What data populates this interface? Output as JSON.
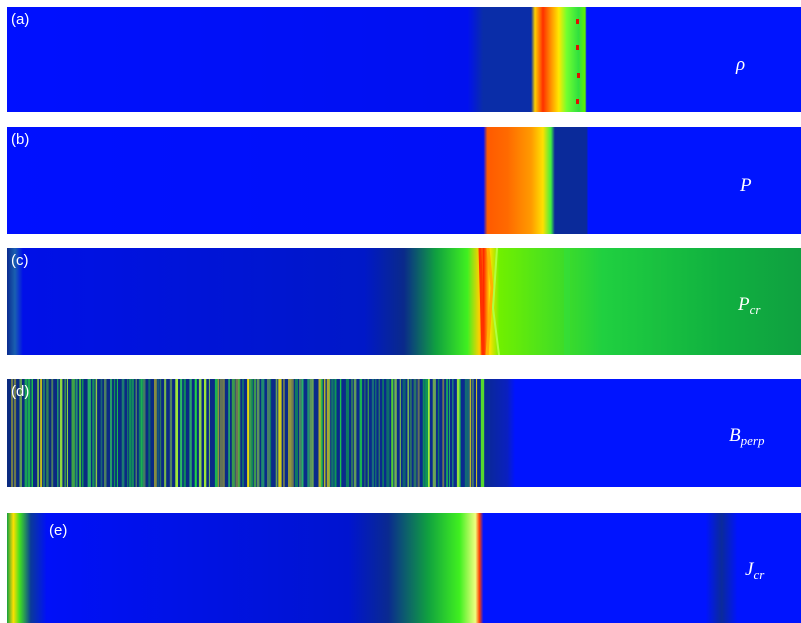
{
  "panels": [
    {
      "id": "a",
      "tag": "(a)",
      "symbol": "ρ",
      "sub": ""
    },
    {
      "id": "b",
      "tag": "(b)",
      "symbol": "P",
      "sub": ""
    },
    {
      "id": "c",
      "tag": "(c)",
      "symbol": "P",
      "sub": "cr"
    },
    {
      "id": "d",
      "tag": "(d)",
      "symbol": "B",
      "sub": "perp"
    },
    {
      "id": "e",
      "tag": "(e)",
      "symbol": "J",
      "sub": "cr"
    }
  ],
  "colors": {
    "background_field": "#0000ff",
    "dark_blue": "#0a1a8a",
    "green": "#1fd81f",
    "yellow": "#ffee00",
    "orange": "#ff7a00",
    "red": "#e01000"
  }
}
